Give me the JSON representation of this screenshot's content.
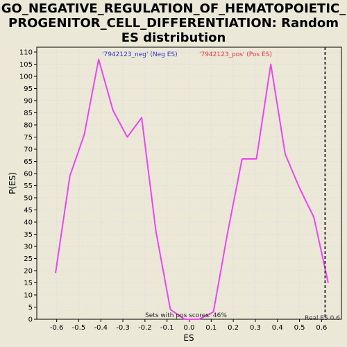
{
  "chart_data": {
    "type": "line",
    "title": "GO_NEGATIVE_REGULATION_OF_HEMATOPOIETIC_\nPROGENITOR_CELL_DIFFERENTIATION: Random\nES distribution",
    "xlabel": "ES",
    "ylabel": "P(ES)",
    "xlim": [
      -0.69,
      0.69
    ],
    "ylim": [
      0,
      112
    ],
    "xticks": [
      -0.6,
      -0.5,
      -0.4,
      -0.3,
      -0.2,
      -0.1,
      0.0,
      0.1,
      0.2,
      0.3,
      0.4,
      0.5,
      0.6
    ],
    "xtick_labels": [
      "-0.6",
      "-0.5",
      "-0.4",
      "-0.3",
      "-0.2",
      "-0.1",
      "0.0",
      "0.1",
      "0.2",
      "0.3",
      "0.4",
      "0.5",
      "0.6"
    ],
    "yticks": [
      0,
      5,
      10,
      15,
      20,
      25,
      30,
      35,
      40,
      45,
      50,
      55,
      60,
      65,
      70,
      75,
      80,
      85,
      90,
      95,
      100,
      105,
      110
    ],
    "ytick_labels": [
      "0",
      "5",
      "10",
      "15",
      "20",
      "25",
      "30",
      "35",
      "40",
      "45",
      "50",
      "55",
      "60",
      "65",
      "70",
      "75",
      "80",
      "85",
      "90",
      "95",
      "100",
      "105",
      "110"
    ],
    "grid": true,
    "series": [
      {
        "color": "#ee44ee",
        "x": [
          -0.605,
          -0.54,
          -0.475,
          -0.41,
          -0.345,
          -0.28,
          -0.215,
          -0.15,
          -0.085,
          -0.02,
          0.045,
          0.11,
          0.175,
          0.24,
          0.305,
          0.37,
          0.435,
          0.5,
          0.565,
          0.63
        ],
        "y": [
          19,
          59,
          76,
          107,
          86,
          75,
          83,
          36,
          4,
          0,
          0,
          3,
          36,
          66,
          66,
          105,
          68,
          54,
          42,
          15
        ]
      }
    ],
    "legend": [
      {
        "label": "'7942123_neg' (Neg ES)",
        "color": "#3333cc"
      },
      {
        "label": "'7942123_pos' (Pos ES)",
        "color": "#ee3333"
      }
    ],
    "real_es": {
      "x": 0.616,
      "label": "Real ES 0.6"
    },
    "annotation": "Sets with pos scores: 46%"
  }
}
